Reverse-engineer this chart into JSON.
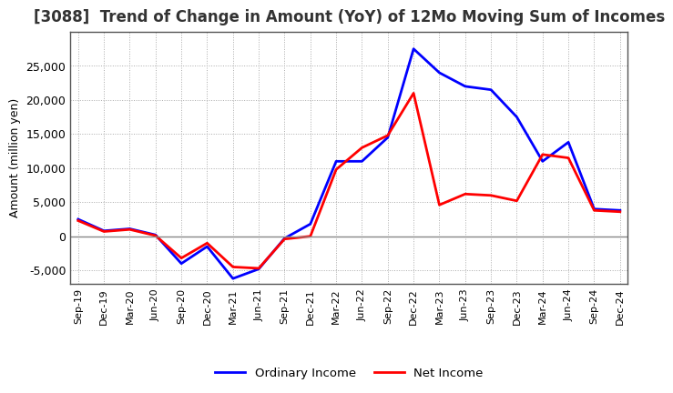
{
  "title": "[3088]  Trend of Change in Amount (YoY) of 12Mo Moving Sum of Incomes",
  "ylabel": "Amount (million yen)",
  "x_labels": [
    "Sep-19",
    "Dec-19",
    "Mar-20",
    "Jun-20",
    "Sep-20",
    "Dec-20",
    "Mar-21",
    "Jun-21",
    "Sep-21",
    "Dec-21",
    "Mar-22",
    "Jun-22",
    "Sep-22",
    "Dec-22",
    "Mar-23",
    "Jun-23",
    "Sep-23",
    "Dec-23",
    "Mar-24",
    "Jun-24",
    "Sep-24",
    "Dec-24"
  ],
  "ordinary_income": [
    2500,
    800,
    1100,
    200,
    -4000,
    -1500,
    -6200,
    -4800,
    -300,
    1800,
    11000,
    11000,
    14500,
    27500,
    24000,
    22000,
    21500,
    17500,
    11000,
    13800,
    4000,
    3800
  ],
  "net_income": [
    2300,
    700,
    1000,
    100,
    -3200,
    -1000,
    -4500,
    -4700,
    -400,
    0,
    9800,
    13000,
    14800,
    21000,
    4600,
    6200,
    6000,
    5200,
    12000,
    11500,
    3800,
    3600
  ],
  "ordinary_income_color": "#0000ff",
  "net_income_color": "#ff0000",
  "ylim": [
    -7000,
    30000
  ],
  "yticks": [
    -5000,
    0,
    5000,
    10000,
    15000,
    20000,
    25000
  ],
  "background_color": "#ffffff",
  "grid_color": "#aaaaaa",
  "title_fontsize": 12,
  "legend_labels": [
    "Ordinary Income",
    "Net Income"
  ]
}
